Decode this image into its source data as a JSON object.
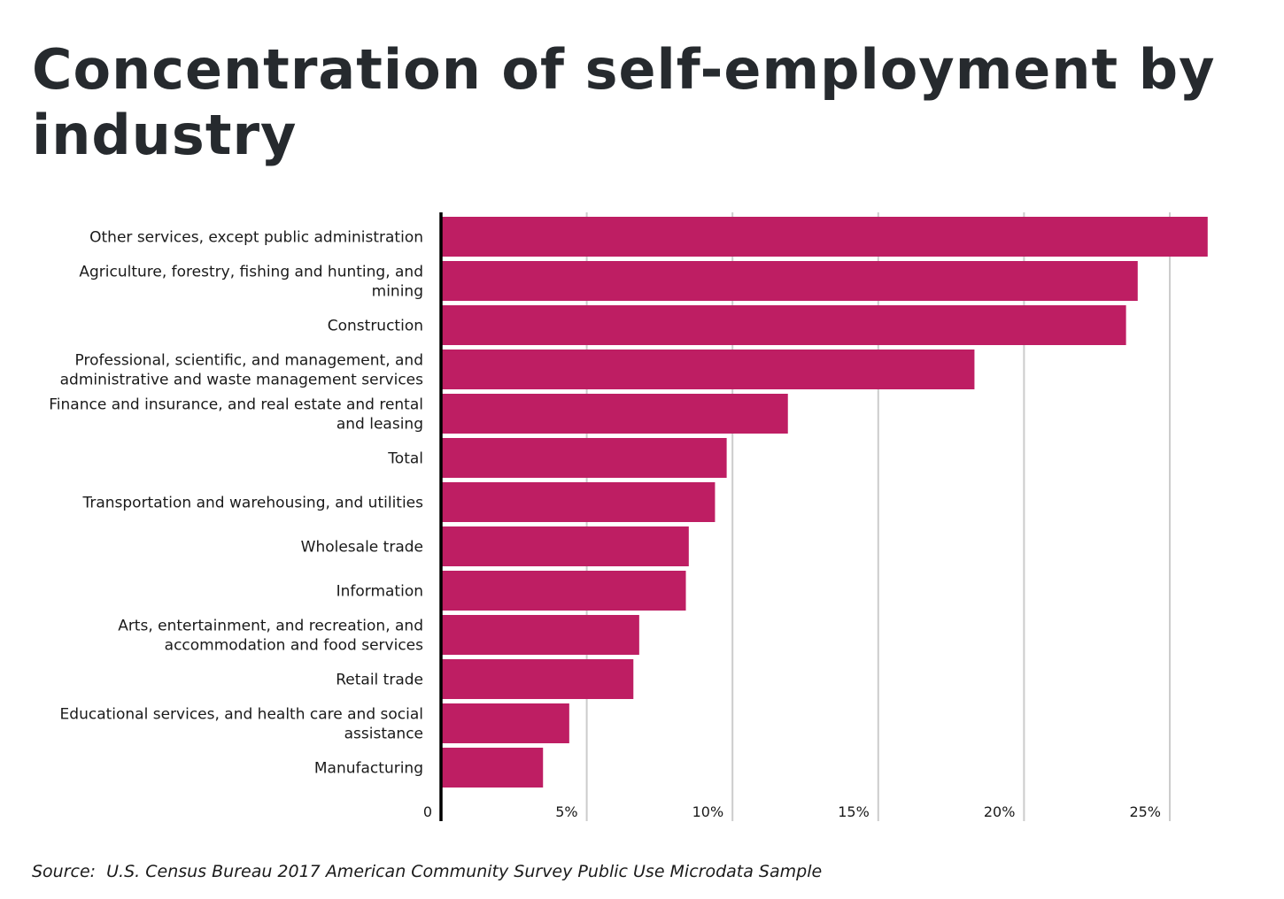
{
  "chart_data": {
    "type": "bar",
    "orientation": "horizontal",
    "title": "Concentration of self-employment by industry",
    "xlabel": "",
    "ylabel": "",
    "xlim": [
      0,
      27
    ],
    "grid": true,
    "bar_color": "#be1e63",
    "categories": [
      [
        "Other services, except public administration"
      ],
      [
        "Agriculture, forestry, fishing and hunting, and",
        "mining"
      ],
      [
        "Construction"
      ],
      [
        "Professional, scientific, and management, and",
        "administrative and waste management services"
      ],
      [
        "Finance and insurance, and real estate and rental",
        "and leasing"
      ],
      [
        "Total"
      ],
      [
        "Transportation and warehousing, and utilities"
      ],
      [
        "Wholesale trade"
      ],
      [
        "Information"
      ],
      [
        "Arts, entertainment, and recreation, and",
        "accommodation and food services"
      ],
      [
        "Retail trade"
      ],
      [
        "Educational services, and health care and social",
        "assistance"
      ],
      [
        "Manufacturing"
      ]
    ],
    "values": [
      26.3,
      23.9,
      23.5,
      18.3,
      11.9,
      9.8,
      9.4,
      8.5,
      8.4,
      6.8,
      6.6,
      4.4,
      3.5
    ],
    "x_ticks": [
      0,
      5,
      10,
      15,
      20,
      25
    ],
    "x_tick_labels": [
      "0",
      "5%",
      "10%",
      "15%",
      "20%",
      "25%"
    ]
  },
  "source": "Source:  U.S. Census Bureau 2017 American Community Survey Public Use Microdata Sample"
}
